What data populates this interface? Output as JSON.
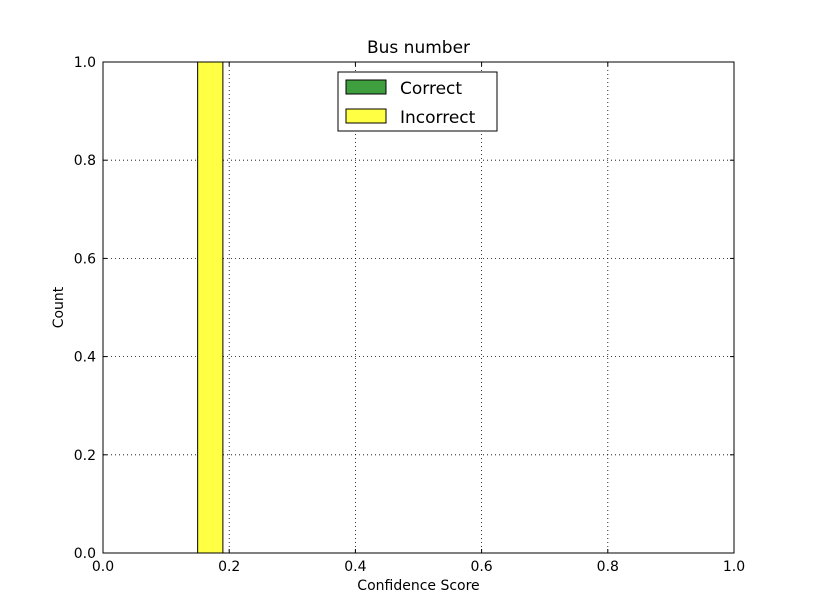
{
  "chart_data": {
    "type": "bar",
    "title": "Bus number",
    "xlabel": "Confidence Score",
    "ylabel": "Count",
    "xlim": [
      0.0,
      1.0
    ],
    "ylim": [
      0.0,
      1.0
    ],
    "grid": true,
    "legend_position": "top-center",
    "xticks": [
      0.0,
      0.2,
      0.4,
      0.6,
      0.8,
      1.0
    ],
    "yticks": [
      0.0,
      0.2,
      0.4,
      0.6,
      0.8,
      1.0
    ],
    "xtick_labels": [
      "0.0",
      "0.2",
      "0.4",
      "0.6",
      "0.8",
      "1.0"
    ],
    "ytick_labels": [
      "0.0",
      "0.2",
      "0.4",
      "0.6",
      "0.8",
      "1.0"
    ],
    "series": [
      {
        "name": "Correct",
        "color": "#3f9f3f",
        "bins": []
      },
      {
        "name": "Incorrect",
        "color": "#ffff44",
        "bins": [
          {
            "x0": 0.15,
            "x1": 0.19,
            "value": 1.0
          }
        ]
      }
    ]
  }
}
